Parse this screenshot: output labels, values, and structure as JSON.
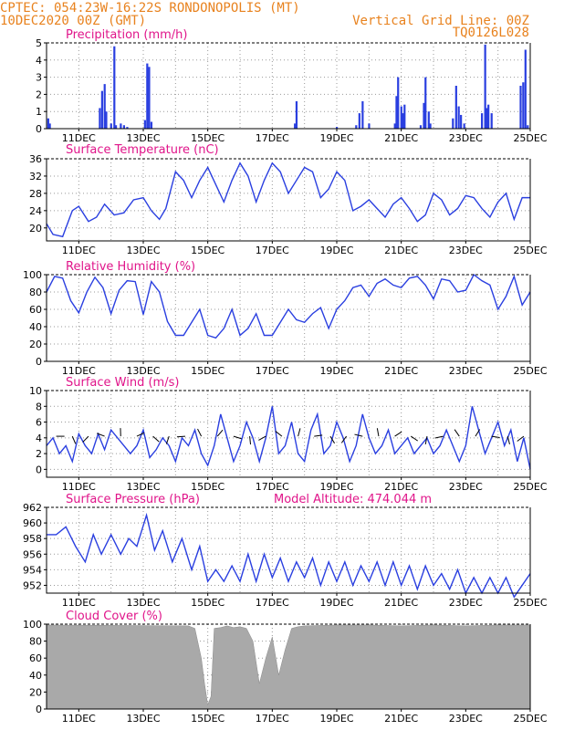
{
  "header": {
    "line1_left": "CPTEC:  054:23W-16:22S  RONDONOPOLIS (MT)",
    "line2_left": "10DEC2020 00Z (GMT)",
    "line1_right": "Vertical Grid Line: 00Z",
    "line2_right": "TQ0126L028"
  },
  "x_ticks": [
    "11DEC",
    "13DEC",
    "15DEC",
    "17DEC",
    "19DEC",
    "21DEC",
    "23DEC",
    "25DEC"
  ],
  "x_tick_days": [
    1,
    3,
    5,
    7,
    9,
    11,
    13,
    15
  ],
  "colors": {
    "series": "#2a3fe0",
    "cloud": "#a9a9a9",
    "title": "#e0158a",
    "header": "#e8821e"
  },
  "chart_data": [
    {
      "type": "bar",
      "title": "Precipitation (mm/h)",
      "ylim": [
        0,
        5
      ],
      "yticks": [
        "0",
        "1",
        "2",
        "3",
        "4",
        "5"
      ],
      "x_unit": "days since 10DEC2020 00Z",
      "x": [
        0.05,
        0.1,
        1.65,
        1.72,
        1.8,
        1.85,
        2.0,
        2.1,
        2.15,
        2.3,
        2.4,
        2.5,
        3.05,
        3.12,
        3.18,
        3.25,
        7.7,
        7.75,
        9.0,
        9.6,
        9.7,
        9.8,
        10.0,
        10.8,
        10.85,
        10.9,
        11.0,
        11.05,
        11.1,
        11.6,
        11.7,
        11.75,
        11.85,
        11.9,
        12.6,
        12.7,
        12.78,
        12.85,
        12.95,
        13.5,
        13.6,
        13.65,
        13.7,
        13.8,
        14.7,
        14.78,
        14.85,
        14.92
      ],
      "values": [
        0.6,
        0.3,
        1.2,
        2.2,
        2.6,
        1.0,
        0.3,
        4.8,
        0.2,
        0.3,
        0.2,
        0.1,
        0.5,
        3.8,
        3.6,
        0.4,
        0.3,
        1.6,
        0.1,
        0.2,
        0.9,
        1.6,
        0.3,
        0.3,
        1.9,
        3.0,
        1.3,
        0.9,
        1.4,
        0.2,
        1.5,
        3.0,
        1.0,
        0.3,
        0.6,
        2.5,
        1.3,
        0.8,
        0.3,
        0.9,
        4.9,
        1.2,
        1.4,
        0.9,
        2.5,
        2.7,
        4.6,
        0.2
      ]
    },
    {
      "type": "line",
      "title": "Surface Temperature (nC)",
      "ylim": [
        17,
        36
      ],
      "yticks": [
        "20",
        "24",
        "28",
        "32",
        "36"
      ],
      "x_unit": "days since 10DEC2020 00Z",
      "x": [
        0,
        0.2,
        0.5,
        0.8,
        1.0,
        1.3,
        1.55,
        1.8,
        2.1,
        2.4,
        2.7,
        3.0,
        3.25,
        3.5,
        3.7,
        4.0,
        4.25,
        4.5,
        4.75,
        5.0,
        5.25,
        5.5,
        5.75,
        6.0,
        6.25,
        6.5,
        6.75,
        7.0,
        7.25,
        7.5,
        7.75,
        8.0,
        8.25,
        8.5,
        8.75,
        9.0,
        9.25,
        9.5,
        9.75,
        10.0,
        10.25,
        10.5,
        10.75,
        11.0,
        11.25,
        11.5,
        11.75,
        12.0,
        12.25,
        12.5,
        12.75,
        13.0,
        13.25,
        13.5,
        13.75,
        14.0,
        14.25,
        14.5,
        14.75,
        15.0
      ],
      "values": [
        21,
        18.5,
        18,
        24,
        25,
        21.5,
        22.5,
        25.5,
        23,
        23.5,
        26.5,
        27,
        24,
        22,
        24.5,
        33,
        31,
        27,
        31,
        34,
        30,
        26,
        31,
        35,
        32,
        26,
        31,
        35,
        33,
        28,
        31,
        34,
        33,
        27,
        29,
        33,
        31,
        24,
        25,
        26.5,
        24.5,
        22.5,
        25.5,
        27,
        24.5,
        21.5,
        23,
        28,
        26.5,
        23,
        24.5,
        27.5,
        27,
        24.5,
        22.5,
        26,
        28,
        22,
        27,
        27
      ]
    },
    {
      "type": "line",
      "title": "Relative Humidity (%)",
      "ylim": [
        0,
        100
      ],
      "yticks": [
        "0",
        "20",
        "40",
        "60",
        "80",
        "100"
      ],
      "x_unit": "days since 10DEC2020 00Z",
      "x": [
        0,
        0.25,
        0.5,
        0.75,
        1.0,
        1.25,
        1.5,
        1.75,
        2.0,
        2.25,
        2.5,
        2.75,
        3.0,
        3.25,
        3.5,
        3.75,
        4.0,
        4.25,
        4.5,
        4.75,
        5.0,
        5.25,
        5.5,
        5.75,
        6.0,
        6.25,
        6.5,
        6.75,
        7.0,
        7.25,
        7.5,
        7.75,
        8.0,
        8.25,
        8.5,
        8.75,
        9.0,
        9.25,
        9.5,
        9.75,
        10.0,
        10.25,
        10.5,
        10.75,
        11.0,
        11.25,
        11.5,
        11.75,
        12.0,
        12.25,
        12.5,
        12.75,
        13.0,
        13.25,
        13.5,
        13.75,
        14.0,
        14.25,
        14.5,
        14.75,
        15.0
      ],
      "values": [
        80,
        98,
        96,
        70,
        56,
        80,
        97,
        85,
        55,
        82,
        93,
        92,
        54,
        92,
        80,
        46,
        30,
        30,
        45,
        60,
        30,
        27,
        38,
        60,
        30,
        38,
        55,
        30,
        30,
        45,
        60,
        48,
        45,
        55,
        62,
        38,
        60,
        70,
        85,
        88,
        75,
        90,
        95,
        88,
        85,
        96,
        98,
        88,
        72,
        95,
        93,
        80,
        82,
        100,
        93,
        88,
        60,
        75,
        98,
        65,
        80
      ]
    },
    {
      "type": "line",
      "title": "Surface Wind (m/s)",
      "ylim": [
        -1,
        10
      ],
      "yticks": [
        "0",
        "2",
        "4",
        "6",
        "8",
        "10"
      ],
      "x_unit": "days since 10DEC2020 00Z",
      "x": [
        0,
        0.2,
        0.4,
        0.6,
        0.8,
        1.0,
        1.2,
        1.4,
        1.6,
        1.8,
        2.0,
        2.2,
        2.4,
        2.6,
        2.8,
        3.0,
        3.2,
        3.4,
        3.6,
        3.8,
        4.0,
        4.2,
        4.4,
        4.6,
        4.8,
        5.0,
        5.2,
        5.4,
        5.6,
        5.8,
        6.0,
        6.2,
        6.4,
        6.6,
        6.8,
        7.0,
        7.2,
        7.4,
        7.6,
        7.8,
        8.0,
        8.2,
        8.4,
        8.6,
        8.8,
        9.0,
        9.2,
        9.4,
        9.6,
        9.8,
        10.0,
        10.2,
        10.4,
        10.6,
        10.8,
        11.0,
        11.2,
        11.4,
        11.6,
        11.8,
        12.0,
        12.2,
        12.4,
        12.6,
        12.8,
        13.0,
        13.2,
        13.4,
        13.6,
        13.8,
        14.0,
        14.2,
        14.4,
        14.6,
        14.8,
        15.0
      ],
      "values": [
        3,
        4,
        2,
        3,
        1,
        4.5,
        3,
        2,
        4.5,
        2.5,
        5,
        4,
        3,
        2,
        3,
        5,
        1.5,
        2.5,
        4,
        3,
        1,
        4,
        3,
        5,
        2,
        0.5,
        3,
        7,
        4,
        1,
        3,
        6,
        4,
        1,
        4,
        8,
        2,
        3,
        6,
        2,
        1,
        5,
        7,
        2,
        3,
        6,
        4,
        1,
        3,
        7,
        4,
        2,
        3,
        5,
        2,
        3,
        4,
        2,
        3,
        4,
        2,
        3,
        5,
        3,
        1,
        3,
        8,
        5,
        2,
        4,
        6,
        3,
        5,
        1,
        4,
        0
      ]
    },
    {
      "type": "line",
      "title": "Surface Pressure (hPa)",
      "annotation": "Model Altitude: 474.044 m",
      "ylim": [
        951,
        962
      ],
      "yticks": [
        "952",
        "954",
        "956",
        "958",
        "960",
        "962"
      ],
      "x_unit": "days since 10DEC2020 00Z",
      "x": [
        0,
        0.3,
        0.6,
        0.9,
        1.2,
        1.45,
        1.7,
        2.0,
        2.3,
        2.55,
        2.8,
        3.1,
        3.35,
        3.6,
        3.9,
        4.2,
        4.5,
        4.75,
        5.0,
        5.25,
        5.5,
        5.75,
        6.0,
        6.25,
        6.5,
        6.75,
        7.0,
        7.25,
        7.5,
        7.75,
        8.0,
        8.25,
        8.5,
        8.75,
        9.0,
        9.25,
        9.5,
        9.75,
        10.0,
        10.25,
        10.5,
        10.75,
        11.0,
        11.25,
        11.5,
        11.75,
        12.0,
        12.25,
        12.5,
        12.75,
        13.0,
        13.25,
        13.5,
        13.75,
        14.0,
        14.25,
        14.5,
        14.75,
        15.0
      ],
      "values": [
        958.5,
        958.5,
        959.5,
        957,
        955,
        958.5,
        956,
        958.5,
        956,
        958,
        957,
        961,
        956.5,
        959,
        955,
        958,
        954,
        957,
        952.5,
        954,
        952.5,
        954.5,
        952.5,
        956,
        952.5,
        956,
        953,
        955.5,
        952.5,
        955,
        953,
        955.5,
        952,
        955,
        952.5,
        955,
        952,
        954.5,
        952.5,
        955,
        952,
        955,
        952,
        954.5,
        951.5,
        954.5,
        952,
        953.5,
        951.5,
        954,
        951,
        953,
        951,
        953,
        951,
        953,
        950.5,
        952,
        953.5
      ]
    },
    {
      "type": "area",
      "title": "Cloud Cover (%)",
      "ylim": [
        0,
        100
      ],
      "yticks": [
        "0",
        "20",
        "40",
        "60",
        "80",
        "100"
      ],
      "x_unit": "days since 10DEC2020 00Z",
      "x": [
        0,
        4.4,
        4.6,
        4.8,
        4.9,
        5.0,
        5.1,
        5.2,
        5.4,
        5.6,
        5.8,
        6.0,
        6.2,
        6.4,
        6.6,
        6.8,
        7.0,
        7.2,
        7.4,
        7.6,
        7.8,
        8.0,
        9.0,
        10.0,
        11.0,
        12.0,
        13.0,
        14.0,
        15.0
      ],
      "values": [
        99,
        98,
        95,
        60,
        30,
        5,
        15,
        95,
        96,
        98,
        96,
        97,
        95,
        80,
        30,
        60,
        85,
        40,
        70,
        95,
        97,
        98,
        99,
        99,
        98,
        99,
        98,
        99,
        99
      ]
    }
  ]
}
